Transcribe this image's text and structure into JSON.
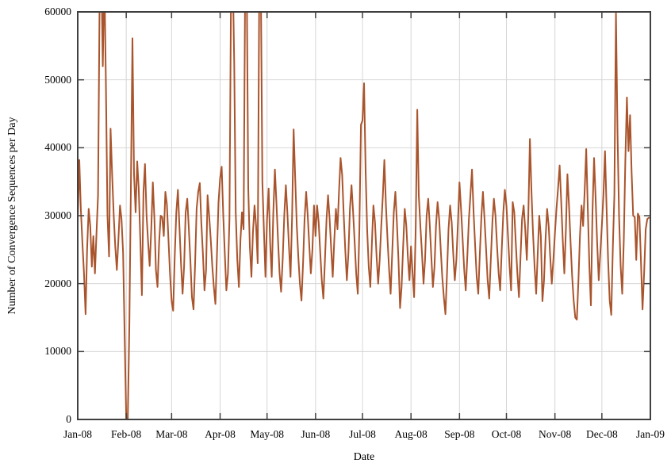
{
  "figure": {
    "background": "#ffffff",
    "border_color": "#404040",
    "grid_color": "#d6d6d6",
    "tick_color": "#404040",
    "text_color": "#000000"
  },
  "chart_data": {
    "type": "line",
    "title": "",
    "xlabel": "Date",
    "ylabel": "Number of Convergence Sequences per Day",
    "x_tick_labels": [
      "Jan-08",
      "Feb-08",
      "Mar-08",
      "Apr-08",
      "May-08",
      "Jun-08",
      "Jul-08",
      "Aug-08",
      "Sep-08",
      "Oct-08",
      "Nov-08",
      "Dec-08",
      "Jan-09"
    ],
    "y_tick_labels": [
      "0",
      "10000",
      "20000",
      "30000",
      "40000",
      "50000",
      "60000"
    ],
    "y_ticks": [
      0,
      10000,
      20000,
      30000,
      40000,
      50000,
      60000
    ],
    "ylim": [
      0,
      60000
    ],
    "x_total_days": 366,
    "month_cum_days": [
      0,
      31,
      60,
      91,
      121,
      152,
      182,
      213,
      244,
      274,
      305,
      335,
      366
    ],
    "grid": true,
    "legend_position": "none",
    "clip_at_ylim": true,
    "series": [
      {
        "name": "Number of Convergence Sequences per Day",
        "color": "#a9542c",
        "start_label": "Jan-08",
        "values": [
          29000,
          38200,
          31000,
          26000,
          21500,
          15500,
          25000,
          31000,
          28500,
          22500,
          27000,
          21500,
          27500,
          33000,
          62000,
          67000,
          52000,
          66000,
          49700,
          30000,
          24000,
          42800,
          36000,
          30000,
          25500,
          22000,
          26500,
          31500,
          29500,
          24500,
          12000,
          0,
          0,
          14000,
          35000,
          56100,
          36000,
          30500,
          38000,
          34000,
          26500,
          18300,
          33500,
          37600,
          30000,
          26000,
          22600,
          28000,
          34900,
          29500,
          22000,
          19500,
          26000,
          30000,
          29800,
          27000,
          33500,
          31700,
          26500,
          21300,
          17400,
          16000,
          24000,
          30500,
          33800,
          28500,
          23000,
          18500,
          22500,
          30500,
          32500,
          28000,
          23500,
          18000,
          16200,
          23000,
          31000,
          33500,
          34800,
          29000,
          24500,
          19000,
          22000,
          33000,
          30000,
          26500,
          22500,
          19500,
          17000,
          24500,
          32000,
          35500,
          37200,
          30000,
          24500,
          19000,
          21500,
          29500,
          63000,
          67000,
          52500,
          30500,
          23500,
          19500,
          26500,
          30500,
          28000,
          64000,
          66000,
          34000,
          25500,
          21000,
          27500,
          31500,
          28500,
          23000,
          62000,
          65000,
          35000,
          28000,
          21000,
          29500,
          34000,
          26000,
          21000,
          30500,
          36800,
          32000,
          26500,
          21500,
          18800,
          23500,
          30000,
          34500,
          30500,
          25500,
          21000,
          30000,
          42700,
          35500,
          28500,
          24000,
          20000,
          17500,
          23000,
          29500,
          33500,
          30000,
          25500,
          21500,
          25000,
          31500,
          27000,
          31500,
          29000,
          24500,
          20500,
          17800,
          23500,
          29500,
          33000,
          29500,
          25000,
          21000,
          26500,
          31000,
          28000,
          33500,
          38500,
          36000,
          30000,
          25000,
          20500,
          24500,
          31000,
          34500,
          30500,
          26000,
          21500,
          18500,
          28000,
          43400,
          44000,
          49500,
          36500,
          28000,
          22500,
          19500,
          26000,
          31500,
          29000,
          24000,
          20000,
          23500,
          28500,
          33000,
          38200,
          31500,
          26500,
          22000,
          18500,
          24500,
          30500,
          33500,
          29000,
          23500,
          16400,
          19500,
          25500,
          31000,
          28500,
          24000,
          20500,
          25500,
          21500,
          18000,
          28000,
          45600,
          33000,
          28500,
          24500,
          20000,
          23500,
          30000,
          32500,
          28500,
          24000,
          19500,
          22500,
          28500,
          32000,
          29500,
          25000,
          21000,
          18000,
          15500,
          21500,
          28000,
          31500,
          29000,
          24500,
          20500,
          23500,
          29000,
          34900,
          31000,
          26500,
          22000,
          19000,
          24000,
          29500,
          33000,
          36800,
          30500,
          25500,
          21000,
          18500,
          24500,
          30000,
          33500,
          29500,
          25000,
          20500,
          17800,
          23500,
          29000,
          32500,
          30000,
          25500,
          21500,
          19000,
          25000,
          30500,
          33800,
          31500,
          27000,
          22500,
          19000,
          32000,
          30500,
          26000,
          21500,
          18000,
          24000,
          29500,
          31500,
          28000,
          23500,
          30000,
          41300,
          33500,
          27500,
          22500,
          18500,
          24500,
          30000,
          27000,
          17400,
          20500,
          26500,
          31000,
          28500,
          24000,
          20000,
          23500,
          27500,
          31000,
          34000,
          37400,
          32000,
          26500,
          21500,
          28000,
          36100,
          31500,
          26000,
          21000,
          17500,
          15000,
          14700,
          20500,
          27000,
          31500,
          28500,
          33500,
          39800,
          31000,
          22500,
          16800,
          30500,
          38500,
          32500,
          26000,
          20500,
          24500,
          28500,
          33000,
          39500,
          31000,
          23500,
          17500,
          15400,
          25500,
          33000,
          59800,
          42000,
          30000,
          22600,
          18500,
          26500,
          38000,
          47400,
          39500,
          44800,
          36500,
          30000,
          29800,
          23500,
          30300,
          29800,
          23000,
          16200,
          21500,
          28000,
          29500,
          29700
        ]
      }
    ]
  }
}
